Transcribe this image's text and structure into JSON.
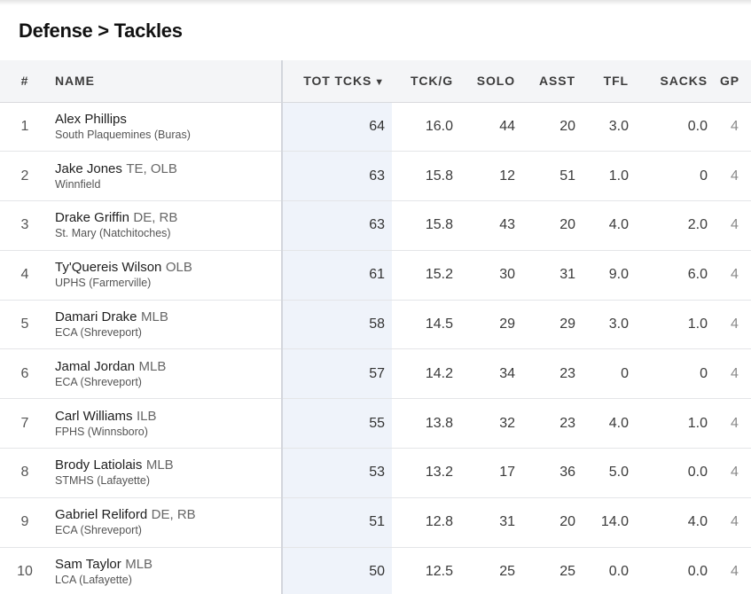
{
  "page": {
    "title": "Defense > Tackles"
  },
  "columns": {
    "rank": "#",
    "name": "NAME",
    "tot": "TOT TCKS",
    "tckg": "TCK/G",
    "solo": "SOLO",
    "asst": "ASST",
    "tfl": "TFL",
    "sacks": "SACKS",
    "gp": "GP",
    "sort_icon": "▼"
  },
  "rows": [
    {
      "rank": "1",
      "name": "Alex Phillips",
      "pos": "",
      "school": "South Plaquemines (Buras)",
      "tot": "64",
      "tckg": "16.0",
      "solo": "44",
      "asst": "20",
      "tfl": "3.0",
      "sacks": "0.0",
      "gp": "4"
    },
    {
      "rank": "2",
      "name": "Jake Jones",
      "pos": "TE, OLB",
      "school": "Winnfield",
      "tot": "63",
      "tckg": "15.8",
      "solo": "12",
      "asst": "51",
      "tfl": "1.0",
      "sacks": "0",
      "gp": "4"
    },
    {
      "rank": "3",
      "name": "Drake Griffin",
      "pos": "DE, RB",
      "school": "St. Mary (Natchitoches)",
      "tot": "63",
      "tckg": "15.8",
      "solo": "43",
      "asst": "20",
      "tfl": "4.0",
      "sacks": "2.0",
      "gp": "4"
    },
    {
      "rank": "4",
      "name": "Ty'Quereis Wilson",
      "pos": " OLB",
      "school": "UPHS (Farmerville)",
      "tot": "61",
      "tckg": "15.2",
      "solo": "30",
      "asst": "31",
      "tfl": "9.0",
      "sacks": "6.0",
      "gp": "4"
    },
    {
      "rank": "5",
      "name": "Damari Drake",
      "pos": "MLB",
      "school": "ECA (Shreveport)",
      "tot": "58",
      "tckg": "14.5",
      "solo": "29",
      "asst": "29",
      "tfl": "3.0",
      "sacks": "1.0",
      "gp": "4"
    },
    {
      "rank": "6",
      "name": "Jamal Jordan",
      "pos": "MLB",
      "school": "ECA (Shreveport)",
      "tot": "57",
      "tckg": "14.2",
      "solo": "34",
      "asst": "23",
      "tfl": "0",
      "sacks": "0",
      "gp": "4"
    },
    {
      "rank": "7",
      "name": "Carl Williams",
      "pos": "ILB",
      "school": "FPHS (Winnsboro)",
      "tot": "55",
      "tckg": "13.8",
      "solo": "32",
      "asst": "23",
      "tfl": "4.0",
      "sacks": "1.0",
      "gp": "4"
    },
    {
      "rank": "8",
      "name": "Brody Latiolais",
      "pos": "MLB",
      "school": "STMHS (Lafayette)",
      "tot": "53",
      "tckg": "13.2",
      "solo": "17",
      "asst": "36",
      "tfl": "5.0",
      "sacks": "0.0",
      "gp": "4"
    },
    {
      "rank": "9",
      "name": "Gabriel Reliford",
      "pos": "DE, RB",
      "school": "ECA (Shreveport)",
      "tot": "51",
      "tckg": "12.8",
      "solo": "31",
      "asst": "20",
      "tfl": "14.0",
      "sacks": "4.0",
      "gp": "4"
    },
    {
      "rank": "10",
      "name": "Sam Taylor",
      "pos": "MLB",
      "school": "LCA (Lafayette)",
      "tot": "50",
      "tckg": "12.5",
      "solo": "25",
      "asst": "25",
      "tfl": "0.0",
      "sacks": "0.0",
      "gp": "4"
    }
  ]
}
